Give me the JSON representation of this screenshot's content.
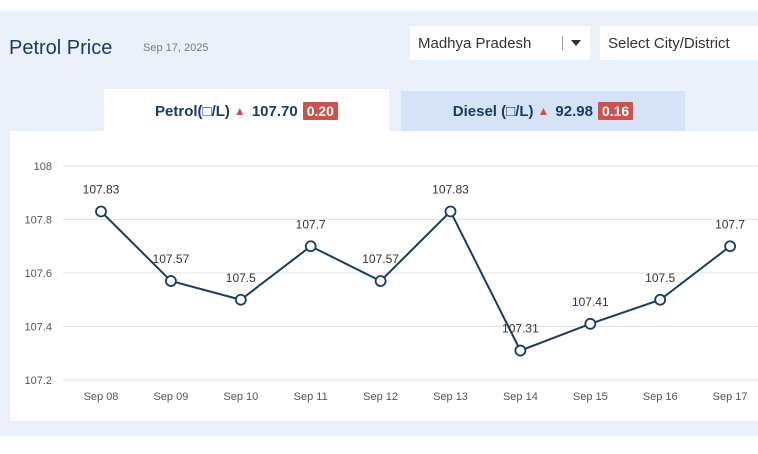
{
  "header": {
    "title": "Petrol Price",
    "date": "Sep 17, 2025"
  },
  "filters": {
    "state_value": "Madhya Pradesh",
    "city_placeholder": "Select City/District"
  },
  "tabs": {
    "petrol": {
      "label": "Petrol(□/L)",
      "arrow": "▲",
      "price": "107.70",
      "change": "0.20"
    },
    "diesel": {
      "label": "Diesel (□/L)",
      "arrow": "▲",
      "price": "92.98",
      "change": "0.16"
    }
  },
  "colors": {
    "line": "#1c3b63",
    "up_arrow": "#c9534f",
    "change_badge": "#c9534f",
    "grid": "#e3e3e3"
  },
  "chart_data": {
    "type": "line",
    "title": "",
    "xlabel": "",
    "ylabel": "",
    "categories": [
      "Sep 08",
      "Sep 09",
      "Sep 10",
      "Sep 11",
      "Sep 12",
      "Sep 13",
      "Sep 14",
      "Sep 15",
      "Sep 16",
      "Sep 17"
    ],
    "values": [
      107.83,
      107.57,
      107.5,
      107.7,
      107.57,
      107.83,
      107.31,
      107.41,
      107.5,
      107.7
    ],
    "data_labels": [
      "107.83",
      "107.57",
      "107.5",
      "107.7",
      "107.57",
      "107.83",
      "107.31",
      "107.41",
      "107.5",
      "107.7"
    ],
    "y_ticks": [
      108,
      107.8,
      107.6,
      107.4,
      107.2
    ],
    "y_tick_labels": [
      "108",
      "107.8",
      "107.6",
      "107.4",
      "107.2"
    ],
    "ylim": [
      107.2,
      108
    ],
    "grid": true,
    "legend": "none"
  }
}
